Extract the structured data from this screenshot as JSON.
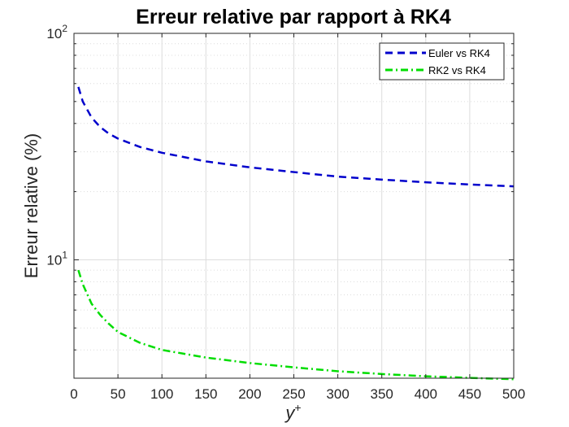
{
  "chart_data": {
    "type": "line",
    "title": "Erreur relative par rapport à RK4",
    "xlabel": "y",
    "xlabel_superscript": "+",
    "ylabel": "Erreur relative (%)",
    "x_scale": "linear",
    "y_scale": "log",
    "xlim": [
      0,
      500
    ],
    "ylim": [
      3,
      100
    ],
    "x_ticks": [
      0,
      50,
      100,
      150,
      200,
      250,
      300,
      350,
      400,
      450,
      500
    ],
    "y_tick_labels": [
      {
        "value": 10,
        "base": "10",
        "exp": "1"
      },
      {
        "value": 100,
        "base": "10",
        "exp": "2"
      }
    ],
    "grid": true,
    "minor_grid": true,
    "legend_position": "top-right",
    "series": [
      {
        "name": "Euler vs RK4",
        "color": "#0000CC",
        "line_style": "dashed",
        "x": [
          5,
          10,
          20,
          30,
          40,
          50,
          75,
          100,
          150,
          200,
          250,
          300,
          350,
          400,
          450,
          500
        ],
        "y": [
          58,
          50,
          42.5,
          38.5,
          36,
          34.3,
          31.5,
          29.7,
          27.2,
          25.6,
          24.4,
          23.3,
          22.6,
          22.0,
          21.5,
          21.1
        ]
      },
      {
        "name": "RK2 vs RK4",
        "color": "#00DD00",
        "line_style": "dash-dot",
        "x": [
          5,
          10,
          20,
          30,
          40,
          50,
          75,
          100,
          150,
          200,
          250,
          300,
          350,
          400,
          450,
          500
        ],
        "y": [
          9.0,
          7.8,
          6.4,
          5.7,
          5.2,
          4.8,
          4.3,
          4.0,
          3.7,
          3.5,
          3.35,
          3.22,
          3.13,
          3.06,
          3.01,
          2.97
        ]
      }
    ]
  }
}
